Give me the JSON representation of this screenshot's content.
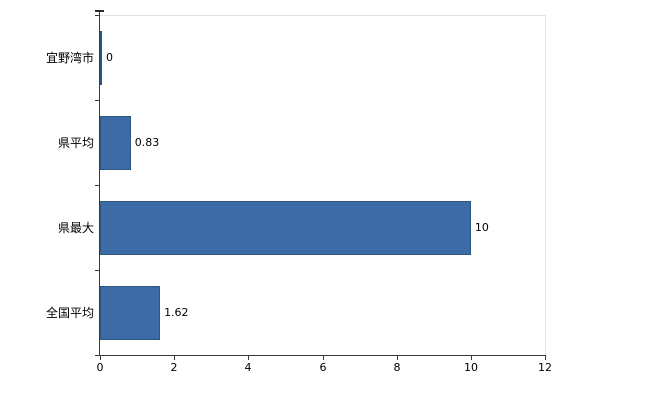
{
  "chart_data": {
    "type": "bar",
    "orientation": "horizontal",
    "title": "",
    "categories": [
      "宜野湾市",
      "県平均",
      "県最大",
      "全国平均"
    ],
    "values": [
      0,
      0.83,
      10,
      1.62
    ],
    "value_labels": [
      "0",
      "0.83",
      "10",
      "1.62"
    ],
    "xlim": [
      0,
      12
    ],
    "x_ticks": [
      0,
      2,
      4,
      6,
      8,
      10,
      12
    ],
    "x_tick_labels": [
      "0",
      "2",
      "4",
      "6",
      "8",
      "10",
      "12"
    ],
    "grid": false,
    "legend": null,
    "colors": {
      "bar_fill": "#3d6ba5",
      "bar_border": "#2d5681",
      "axis": "#3a3a3a",
      "plot_border": "#e3e3e3",
      "background": "#ffffff",
      "text": "#000000"
    }
  }
}
